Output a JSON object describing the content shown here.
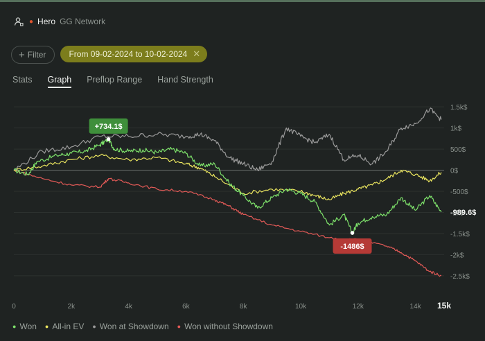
{
  "header": {
    "hero": "Hero",
    "network": "GG Network"
  },
  "filters": {
    "filter_label": "Filter",
    "date_range": "From 09-02-2024 to 10-02-2024"
  },
  "tabs": [
    {
      "label": "Stats",
      "active": false
    },
    {
      "label": "Graph",
      "active": true
    },
    {
      "label": "Preflop Range",
      "active": false
    },
    {
      "label": "Hand Strength",
      "active": false
    }
  ],
  "legend": [
    {
      "label": "Won",
      "color": "#7de06a"
    },
    {
      "label": "All-in EV",
      "color": "#e8e35e"
    },
    {
      "label": "Won at Showdown",
      "color": "#9a9a9a"
    },
    {
      "label": "Won without Showdown",
      "color": "#e35a57"
    }
  ],
  "chart_data": {
    "type": "line",
    "xlabel": "",
    "ylabel": "",
    "x_ticks": [
      "0",
      "2k",
      "4k",
      "6k",
      "8k",
      "10k",
      "12k",
      "14k",
      "15k"
    ],
    "y_ticks": [
      "1.5k$",
      "1k$",
      "500$",
      "0$",
      "-500$",
      "-1k$",
      "-1.5k$",
      "-2k$",
      "-2.5k$"
    ],
    "xlim": [
      0,
      15000
    ],
    "ylim": [
      -2700,
      1700
    ],
    "final_value_label": "-989.6$",
    "callouts": [
      {
        "text": "+734.1$",
        "x": 3300,
        "y": 734.1,
        "color": "#3f8f3b"
      },
      {
        "text": "-1486$",
        "x": 11800,
        "y": -1486,
        "color": "#b53a36"
      }
    ],
    "series": [
      {
        "name": "Won",
        "color": "#7de06a",
        "x": [
          0,
          500,
          800,
          1500,
          2000,
          2500,
          3000,
          3300,
          3500,
          4000,
          4500,
          5000,
          5500,
          6000,
          6500,
          7000,
          7500,
          8000,
          8500,
          9000,
          9500,
          10000,
          10500,
          11000,
          11500,
          11800,
          12000,
          12500,
          13000,
          13500,
          14000,
          14500,
          14900
        ],
        "y": [
          0,
          -100,
          200,
          350,
          400,
          450,
          600,
          734,
          500,
          450,
          480,
          420,
          500,
          400,
          100,
          150,
          -300,
          -600,
          -900,
          -650,
          -450,
          -550,
          -750,
          -1300,
          -1050,
          -1486,
          -1250,
          -1100,
          -1050,
          -650,
          -950,
          -600,
          -990
        ]
      },
      {
        "name": "All-in EV",
        "color": "#e8e35e",
        "x": [
          0,
          1000,
          2000,
          3000,
          4000,
          5000,
          6000,
          6500,
          7000,
          8000,
          9000,
          10000,
          10500,
          11000,
          11500,
          12000,
          12500,
          13000,
          13500,
          14000,
          14500,
          14900
        ],
        "y": [
          0,
          100,
          250,
          350,
          250,
          300,
          150,
          50,
          -150,
          -550,
          -450,
          -500,
          -600,
          -700,
          -550,
          -450,
          -350,
          -200,
          0,
          -100,
          -250,
          -50
        ]
      },
      {
        "name": "Won at Showdown",
        "color": "#9a9a9a",
        "x": [
          0,
          1000,
          2000,
          3000,
          4000,
          5000,
          6000,
          6500,
          7000,
          7500,
          8000,
          8500,
          9000,
          9500,
          10000,
          10500,
          11000,
          11500,
          12000,
          12500,
          13000,
          13500,
          14000,
          14500,
          14900
        ],
        "y": [
          0,
          450,
          550,
          800,
          800,
          850,
          800,
          850,
          700,
          300,
          150,
          0,
          200,
          1000,
          800,
          650,
          850,
          250,
          350,
          150,
          450,
          1000,
          1100,
          1450,
          1200
        ]
      },
      {
        "name": "Won without Showdown",
        "color": "#e35a57",
        "x": [
          0,
          1000,
          2000,
          3000,
          3300,
          4000,
          5000,
          6000,
          7000,
          7500,
          8000,
          9000,
          10000,
          11000,
          12000,
          13000,
          13500,
          14000,
          14500,
          14900
        ],
        "y": [
          0,
          -200,
          -350,
          -400,
          -200,
          -300,
          -450,
          -500,
          -700,
          -850,
          -1050,
          -1300,
          -1450,
          -1600,
          -1650,
          -1800,
          -1950,
          -2150,
          -2400,
          -2500
        ]
      }
    ]
  }
}
